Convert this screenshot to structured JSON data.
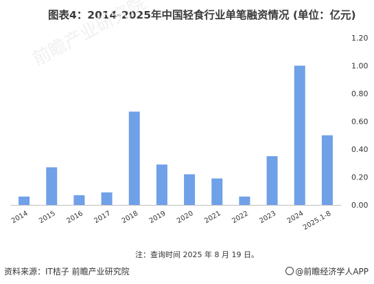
{
  "title": "图表4：2014-2025年中国轻食行业单笔融资情况 (单位：亿元)",
  "watermark": "前瞻产业研究院",
  "note": "注：查询时间 2025 年 8 月 19 日。",
  "source": "资料来源：IT桔子 前瞻产业研究院",
  "brand": "@前瞻经济学人APP",
  "chart_data": {
    "type": "bar",
    "categories": [
      "2014",
      "2015",
      "2016",
      "2017",
      "2018",
      "2019",
      "2020",
      "2021",
      "2022",
      "2023",
      "2024",
      "2025.1-8"
    ],
    "values": [
      0.06,
      0.27,
      0.07,
      0.09,
      0.67,
      0.29,
      0.22,
      0.19,
      0.06,
      0.35,
      1.0,
      0.5
    ],
    "yticks": [
      "0.00",
      "0.20",
      "0.40",
      "0.60",
      "0.80",
      "1.00",
      "1.20"
    ],
    "ylim": [
      0,
      1.2
    ],
    "y_axis_side": "right",
    "bar_color": "#6fa0e8",
    "axis_color": "#bfbfbf"
  }
}
